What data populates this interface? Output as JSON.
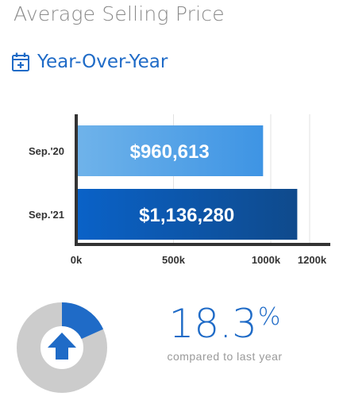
{
  "header": {
    "title": "Average Selling Price",
    "subtitle": "Year-Over-Year",
    "subtitle_icon": "calendar-plus-icon"
  },
  "chart_data": {
    "type": "bar",
    "orientation": "horizontal",
    "categories": [
      "Sep.'20",
      "Sep.'21"
    ],
    "values": [
      960613,
      1136280
    ],
    "data_labels": [
      "$960,613",
      "$1,136,280"
    ],
    "x_ticks": [
      {
        "value": 0,
        "label": "0k"
      },
      {
        "value": 500000,
        "label": "500k"
      },
      {
        "value": 1000000,
        "label": "1000k"
      },
      {
        "value": 1200000,
        "label": "1200k"
      }
    ],
    "xlim": [
      0,
      1200000
    ],
    "grid": true,
    "bar_colors": [
      [
        "#6fb3ea",
        "#3e94e4"
      ],
      [
        "#0a62c8",
        "#0f4a8c"
      ]
    ]
  },
  "summary": {
    "change_value": "18.3",
    "change_unit": "%",
    "change_fraction": 0.183,
    "caption": "compared to last year",
    "indicator_icon": "arrow-up-icon",
    "colors": {
      "accent": "#1f6bc7",
      "ring_bg": "#cccccc"
    }
  }
}
